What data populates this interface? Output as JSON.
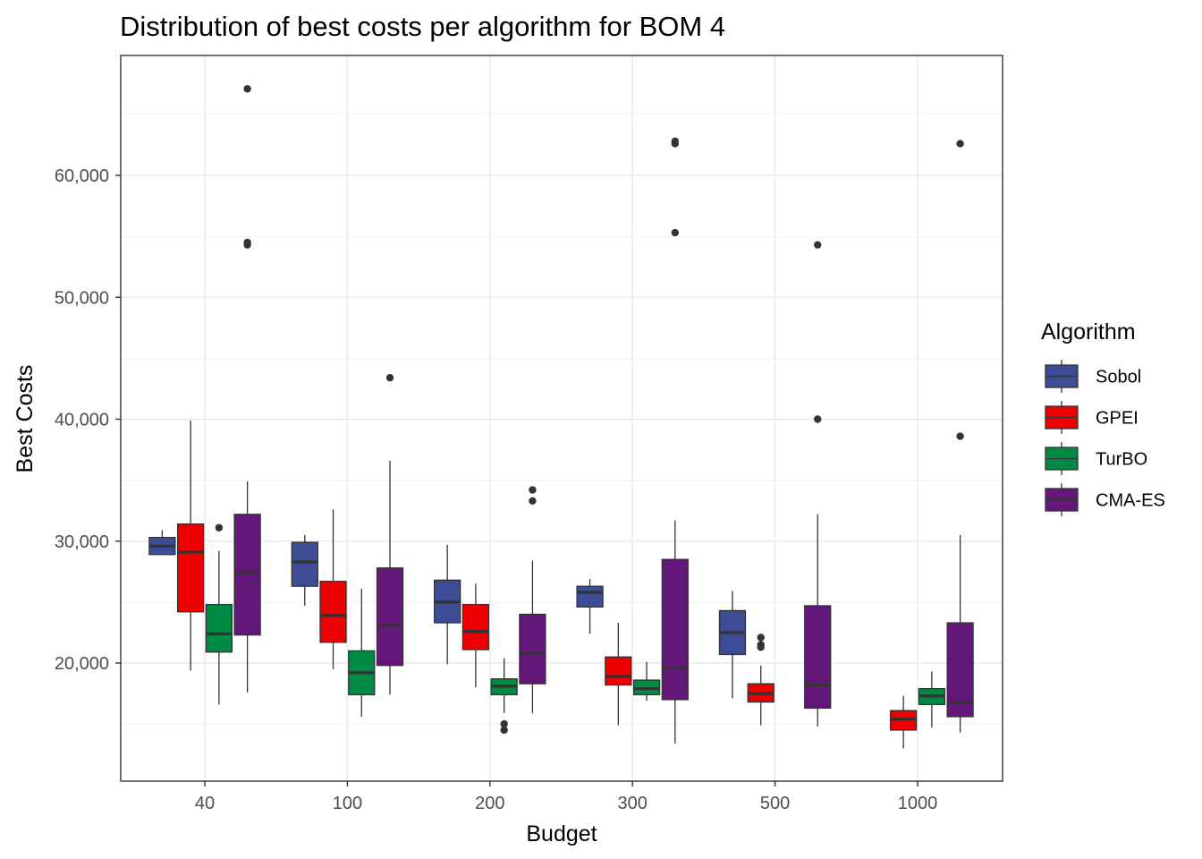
{
  "chart_data": {
    "type": "boxplot",
    "title": "Distribution of best costs per algorithm for BOM 4",
    "xlabel": "Budget",
    "ylabel": "Best Costs",
    "ylim": [
      10000,
      70000
    ],
    "y_ticks": [
      20000,
      30000,
      40000,
      50000,
      60000
    ],
    "y_tick_labels": [
      "20,000",
      "30,000",
      "40,000",
      "50,000",
      "60,000"
    ],
    "categories": [
      "40",
      "100",
      "200",
      "300",
      "500",
      "1000"
    ],
    "grid": true,
    "legend": {
      "title": "Algorithm",
      "position": "right"
    },
    "series": [
      {
        "name": "Sobol",
        "color": "#3C4C96",
        "boxes": [
          {
            "category": "40",
            "low": 28900,
            "q1": 28900,
            "median": 29600,
            "q3": 30300,
            "high": 30900,
            "outliers": []
          },
          {
            "category": "100",
            "low": 24700,
            "q1": 26300,
            "median": 28300,
            "q3": 29900,
            "high": 30500,
            "outliers": []
          },
          {
            "category": "200",
            "low": 19900,
            "q1": 23300,
            "median": 25000,
            "q3": 26800,
            "high": 29700,
            "outliers": []
          },
          {
            "category": "300",
            "low": 22400,
            "q1": 24600,
            "median": 25800,
            "q3": 26300,
            "high": 26900,
            "outliers": []
          },
          {
            "category": "500",
            "low": 17100,
            "q1": 20700,
            "median": 22500,
            "q3": 24300,
            "high": 25900,
            "outliers": []
          },
          {
            "category": "1000",
            "absent": true
          }
        ]
      },
      {
        "name": "GPEI",
        "color": "#EE0000",
        "boxes": [
          {
            "category": "40",
            "low": 19400,
            "q1": 24200,
            "median": 29100,
            "q3": 31400,
            "high": 39900,
            "outliers": []
          },
          {
            "category": "100",
            "low": 19500,
            "q1": 21700,
            "median": 23900,
            "q3": 26700,
            "high": 32600,
            "outliers": []
          },
          {
            "category": "200",
            "low": 18000,
            "q1": 21100,
            "median": 22600,
            "q3": 24800,
            "high": 26500,
            "outliers": []
          },
          {
            "category": "300",
            "low": 14900,
            "q1": 18200,
            "median": 18900,
            "q3": 20500,
            "high": 23300,
            "outliers": []
          },
          {
            "category": "500",
            "low": 14900,
            "q1": 16800,
            "median": 17500,
            "q3": 18300,
            "high": 19800,
            "outliers": [
              21300,
              21500,
              22100
            ]
          },
          {
            "category": "1000",
            "low": 13000,
            "q1": 14500,
            "median": 15400,
            "q3": 16100,
            "high": 17300,
            "outliers": []
          }
        ]
      },
      {
        "name": "TurBO",
        "color": "#008B45",
        "boxes": [
          {
            "category": "40",
            "low": 16600,
            "q1": 20900,
            "median": 22400,
            "q3": 24800,
            "high": 29200,
            "outliers": [
              31100
            ]
          },
          {
            "category": "100",
            "low": 15600,
            "q1": 17400,
            "median": 19200,
            "q3": 21000,
            "high": 26100,
            "outliers": []
          },
          {
            "category": "200",
            "low": 15900,
            "q1": 17400,
            "median": 18100,
            "q3": 18700,
            "high": 20400,
            "outliers": [
              14500,
              15000
            ]
          },
          {
            "category": "300",
            "low": 16900,
            "q1": 17400,
            "median": 17900,
            "q3": 18600,
            "high": 20100,
            "outliers": []
          },
          {
            "category": "500",
            "absent": true
          },
          {
            "category": "1000",
            "low": 14700,
            "q1": 16600,
            "median": 17300,
            "q3": 17900,
            "high": 19300,
            "outliers": []
          }
        ]
      },
      {
        "name": "CMA-ES",
        "color": "#631879",
        "boxes": [
          {
            "category": "40",
            "low": 17600,
            "q1": 22300,
            "median": 27400,
            "q3": 32200,
            "high": 34900,
            "outliers": [
              54300,
              54500,
              67100
            ]
          },
          {
            "category": "100",
            "low": 17400,
            "q1": 19800,
            "median": 23100,
            "q3": 27800,
            "high": 36600,
            "outliers": [
              43400
            ]
          },
          {
            "category": "200",
            "low": 15900,
            "q1": 18300,
            "median": 20800,
            "q3": 24000,
            "high": 28400,
            "outliers": [
              33300,
              34200
            ]
          },
          {
            "category": "300",
            "low": 13400,
            "q1": 17000,
            "median": 19600,
            "q3": 28500,
            "high": 31700,
            "outliers": [
              55300,
              62600,
              62800
            ]
          },
          {
            "category": "500",
            "low": 14800,
            "q1": 16300,
            "median": 18200,
            "q3": 24700,
            "high": 32200,
            "outliers": [
              40000,
              54300
            ]
          },
          {
            "category": "1000",
            "low": 14300,
            "q1": 15600,
            "median": 16800,
            "q3": 23300,
            "high": 30500,
            "outliers": [
              38600,
              62600
            ]
          }
        ]
      }
    ]
  }
}
